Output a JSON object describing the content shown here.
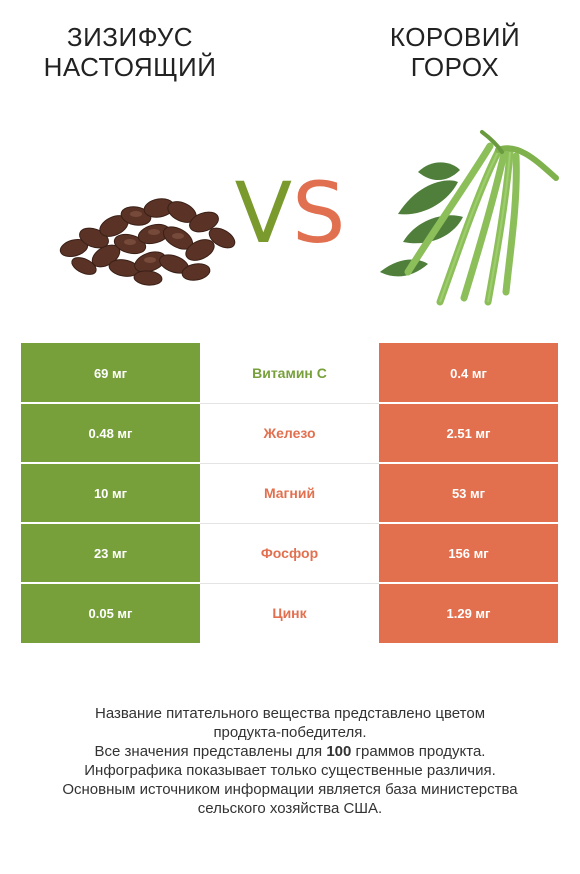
{
  "header": {
    "left_title_line1": "Зизифус",
    "left_title_line2": "настоящий",
    "right_title_line1": "Коровий",
    "right_title_line2": "горох",
    "vs_v": "V",
    "vs_s": "S"
  },
  "colors": {
    "left_accent": "#77a03b",
    "right_accent": "#e2704f"
  },
  "images": {
    "left": "jujube-beans-image",
    "right": "cowpea-pods-image"
  },
  "nutrients": [
    {
      "name": "Витамин С",
      "left": "69 мг",
      "right": "0.4 мг",
      "winner": "left"
    },
    {
      "name": "Железо",
      "left": "0.48 мг",
      "right": "2.51 мг",
      "winner": "right"
    },
    {
      "name": "Магний",
      "left": "10 мг",
      "right": "53 мг",
      "winner": "right"
    },
    {
      "name": "Фосфор",
      "left": "23 мг",
      "right": "156 мг",
      "winner": "right"
    },
    {
      "name": "Цинк",
      "left": "0.05 мг",
      "right": "1.29 мг",
      "winner": "right"
    }
  ],
  "footnote": {
    "line1": "Название питательного вещества представлено цветом",
    "line2": "продукта-победителя.",
    "line3_pre": "Все значения представлены для ",
    "line3_bold": "100",
    "line3_post": " граммов продукта.",
    "line4": "Инфографика показывает только существенные различия.",
    "line5": "Основным источником информации является база министерства",
    "line6": "сельского хозяйства США."
  }
}
